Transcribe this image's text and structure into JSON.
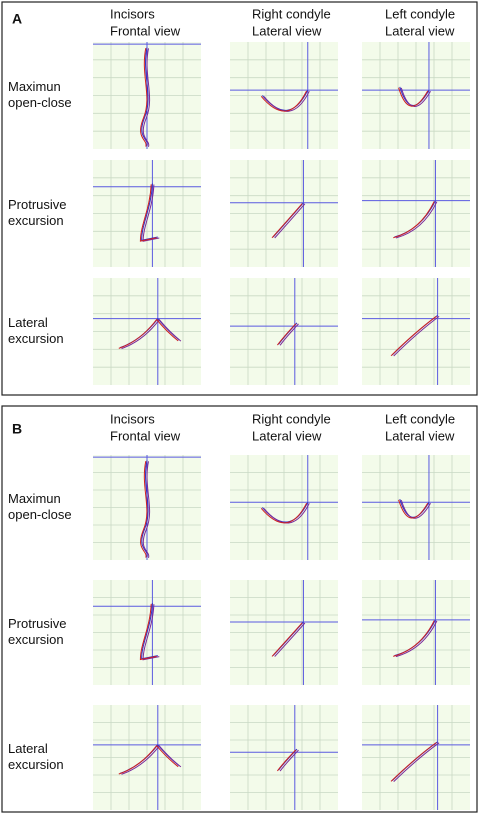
{
  "panels": [
    {
      "label": "A",
      "columns": [
        [
          "Incisors",
          "Frontal view"
        ],
        [
          "Right condyle",
          "Lateral view"
        ],
        [
          "Left condyle",
          "Lateral view"
        ]
      ],
      "rows": [
        [
          "Maximun",
          "open-close"
        ],
        [
          "Protrusive",
          "excursion"
        ],
        [
          "Lateral",
          "excursion"
        ]
      ]
    },
    {
      "label": "B",
      "columns": [
        [
          "Incisors",
          "Frontal view"
        ],
        [
          "Right condyle",
          "Lateral view"
        ],
        [
          "Left condyle",
          "Lateral view"
        ]
      ],
      "rows": [
        [
          "Maximun",
          "open-close"
        ],
        [
          "Protrusive",
          "excursion"
        ],
        [
          "Lateral",
          "excursion"
        ]
      ]
    }
  ]
}
